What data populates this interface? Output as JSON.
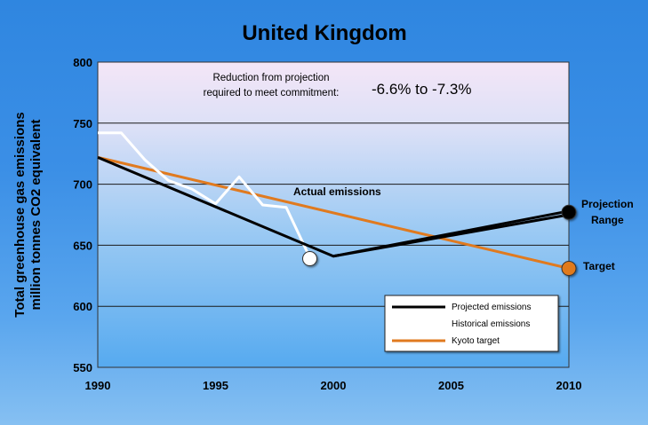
{
  "chart_data": {
    "type": "line",
    "title": "United Kingdom",
    "ylabel_line1": "Total greenhouse gas emissions",
    "ylabel_line2": "million tonnes CO2 equivalent",
    "xlim": [
      1990,
      2010
    ],
    "ylim": [
      550,
      800
    ],
    "x_ticks": [
      1990,
      1995,
      2000,
      2005,
      2010
    ],
    "y_ticks": [
      550,
      600,
      650,
      700,
      750,
      800
    ],
    "grid": "horizontal",
    "series": [
      {
        "name": "Projected emissions",
        "color": "#000000",
        "points": [
          [
            1990,
            722
          ],
          [
            2000,
            641
          ],
          [
            2010,
            678
          ]
        ],
        "points_low": [
          [
            2000,
            641
          ],
          [
            2010,
            675
          ]
        ],
        "end_marker": [
          2010,
          677
        ]
      },
      {
        "name": "Historical emissions",
        "color": "#ffffff",
        "points": [
          [
            1990,
            742
          ],
          [
            1991,
            742
          ],
          [
            1992,
            720
          ],
          [
            1993,
            703
          ],
          [
            1994,
            696
          ],
          [
            1995,
            684
          ],
          [
            1996,
            706
          ],
          [
            1997,
            683
          ],
          [
            1998,
            681
          ],
          [
            1999,
            640
          ]
        ],
        "end_marker": [
          1999,
          639
        ]
      },
      {
        "name": "Kyoto target",
        "color": "#e07a1f",
        "points": [
          [
            1990,
            722
          ],
          [
            2010,
            631
          ]
        ],
        "end_marker": [
          2010,
          631
        ]
      }
    ],
    "note_line1": "Reduction from projection",
    "note_line2": "required to meet commitment:",
    "note_value": "-6.6% to -7.3%",
    "annotations": {
      "actual": "Actual emissions",
      "projection_line1": "Projection",
      "projection_line2": "Range",
      "target": "Target"
    },
    "legend_placement": "bottom-right"
  }
}
